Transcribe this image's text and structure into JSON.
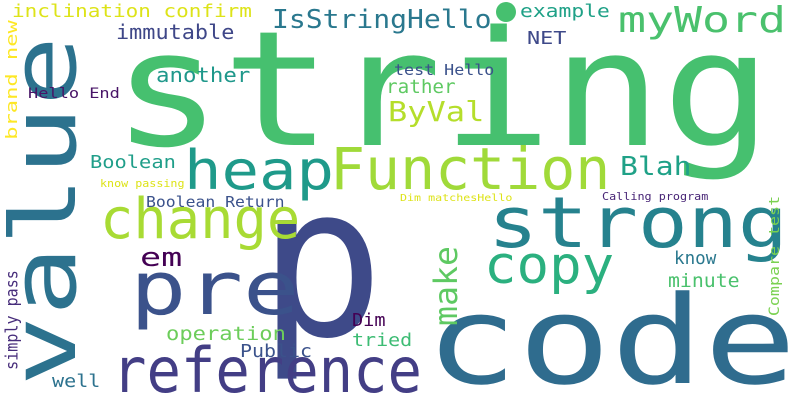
{
  "words": [
    {
      "text": "string",
      "color": "#46c06f"
    },
    {
      "text": "p",
      "color": "#3e4a89"
    },
    {
      "text": "code",
      "color": "#2f6c8e"
    },
    {
      "text": "value",
      "color": "#2c728e"
    },
    {
      "text": "reference",
      "color": "#433e85"
    },
    {
      "text": "strong",
      "color": "#26828e"
    },
    {
      "text": "Function",
      "color": "#a0da39"
    },
    {
      "text": "change",
      "color": "#a8db34"
    },
    {
      "text": "pre",
      "color": "#3b528b"
    },
    {
      "text": "heap",
      "color": "#1f9a8a"
    },
    {
      "text": "copy",
      "color": "#2bb07f"
    },
    {
      "text": "IsStringHello",
      "color": "#2a788e"
    },
    {
      "text": "myWord",
      "color": "#4ac16d"
    },
    {
      "text": "make",
      "color": "#5ec962"
    },
    {
      "text": "ByVal",
      "color": "#b5de2b"
    },
    {
      "text": "Blah",
      "color": "#1fa187"
    },
    {
      "text": "em",
      "color": "#440154"
    },
    {
      "text": "inclination confirm",
      "color": "#dde318"
    },
    {
      "text": "immutable",
      "color": "#3f4788"
    },
    {
      "text": "example",
      "color": "#1fa187"
    },
    {
      "text": "another",
      "color": "#1f988b"
    },
    {
      "text": "test Hello",
      "color": "#3b528b"
    },
    {
      "text": "Hello End",
      "color": "#481467"
    },
    {
      "text": "NET",
      "color": "#3e4989"
    },
    {
      "text": "rather",
      "color": "#5ec962"
    },
    {
      "text": "Boolean",
      "color": "#1f9e89"
    },
    {
      "text": "know passing",
      "color": "#dde318"
    },
    {
      "text": "Boolean Return",
      "color": "#3b528b"
    },
    {
      "text": "Dim matchesHello",
      "color": "#dde318"
    },
    {
      "text": "Calling program",
      "color": "#482576"
    },
    {
      "text": "Compare test",
      "color": "#7ad151"
    },
    {
      "text": "know",
      "color": "#2a788e"
    },
    {
      "text": "minute",
      "color": "#4ac16d"
    },
    {
      "text": "brand new",
      "color": "#fde725"
    },
    {
      "text": "simply pass",
      "color": "#472d7b"
    },
    {
      "text": "operation",
      "color": "#6ccd5a"
    },
    {
      "text": "Dim",
      "color": "#440154"
    },
    {
      "text": "tried",
      "color": "#3dbc74"
    },
    {
      "text": "Public",
      "color": "#3b528b"
    },
    {
      "text": "well",
      "color": "#2c728e"
    }
  ],
  "decorations": [
    {
      "name": "green-dot",
      "color": "#46c06f"
    }
  ]
}
